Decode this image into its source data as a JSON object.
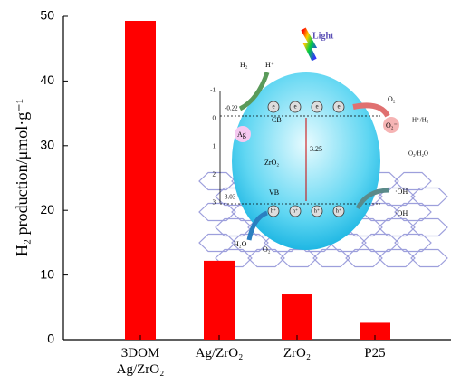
{
  "chart_data": {
    "type": "bar",
    "y_label": "H₂ production/μmol·g⁻¹",
    "categories": [
      "3DOM Ag/ZrO₂",
      "Ag/ZrO₂",
      "ZrO₂",
      "P25"
    ],
    "values": [
      49.3,
      12.2,
      7.0,
      2.6
    ],
    "color": "#ff0000",
    "ylim": [
      0,
      50
    ],
    "yticks": [
      0,
      10,
      20,
      30,
      40,
      50
    ],
    "grid": false,
    "inset": {
      "light": "Light",
      "h2": "H₂",
      "hplus": "H⁺",
      "o2_top": "O₂",
      "o2_minus": "O₂⁻",
      "h_h2": "H⁺/H₂",
      "o2_h2o": "O₂/H₂O",
      "oh_1": "·OH",
      "oh_2": "·OH",
      "h2o": "H₂O",
      "o2_bottom": "O₂",
      "ag": "Ag",
      "cb": "CB",
      "vb": "VB",
      "gap": "3.25",
      "zro2": "ZrO₂",
      "cb_level": "-0.22",
      "vb_level": "3.03",
      "electron": "e",
      "hole": "h⁺",
      "scale": [
        -1,
        0,
        1,
        2,
        3
      ]
    }
  }
}
